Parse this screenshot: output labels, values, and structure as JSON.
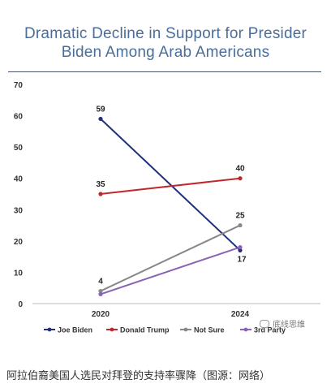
{
  "chart_data": {
    "type": "line",
    "title": "Dramatic Decline in Support for President Biden Among Arab Americans",
    "title_lines": [
      "Dramatic Decline in Support for Presider",
      "Biden Among Arab Americans"
    ],
    "x": [
      "2020",
      "2024"
    ],
    "ylim": [
      0,
      70
    ],
    "yticks": [
      0,
      10,
      20,
      30,
      40,
      50,
      60,
      70
    ],
    "grid": false,
    "legend_position": "bottom",
    "series": [
      {
        "name": "Joe Biden",
        "values": [
          59,
          17
        ],
        "color": "#1f2f7a",
        "labels": [
          "59",
          "17"
        ]
      },
      {
        "name": "Donald Trump",
        "values": [
          35,
          40
        ],
        "color": "#c0282d",
        "labels": [
          "35",
          "40"
        ]
      },
      {
        "name": "Not Sure",
        "values": [
          4,
          25
        ],
        "color": "#888888",
        "labels": [
          "4",
          "25"
        ]
      },
      {
        "name": "3rd Party",
        "values": [
          3,
          18
        ],
        "color": "#8a63b5",
        "labels": [
          "",
          ""
        ]
      }
    ]
  },
  "caption": "阿拉伯裔美国人选民对拜登的支持率骤降（图源：网络）",
  "watermark": "底线思维"
}
